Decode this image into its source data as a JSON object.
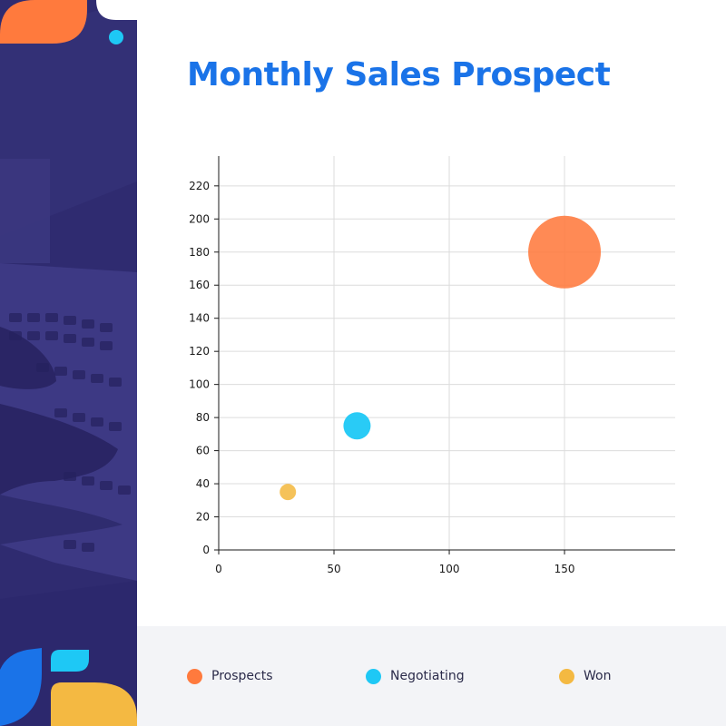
{
  "chart_data": {
    "type": "scatter",
    "title": "Monthly Sales Prospect",
    "xlabel": "",
    "ylabel": "",
    "xlim": [
      0,
      198
    ],
    "ylim": [
      0,
      238
    ],
    "x_ticks": [
      0,
      50,
      100,
      150
    ],
    "y_ticks": [
      0,
      20,
      40,
      60,
      80,
      100,
      120,
      140,
      160,
      180,
      200,
      220
    ],
    "grid": true,
    "legend_position": "bottom",
    "series": [
      {
        "name": "Prospects",
        "color": "#ff7a3d",
        "points": [
          {
            "x": 150,
            "y": 180,
            "size": 40
          }
        ]
      },
      {
        "name": "Negotiating",
        "color": "#1ec8f5",
        "points": [
          {
            "x": 60,
            "y": 75,
            "size": 15
          }
        ]
      },
      {
        "name": "Won",
        "color": "#f4b942",
        "points": [
          {
            "x": 30,
            "y": 35,
            "size": 9
          }
        ]
      }
    ]
  },
  "legend": {
    "items": [
      {
        "label": "Prospects",
        "color": "#ff7a3d"
      },
      {
        "label": "Negotiating",
        "color": "#1ec8f5"
      },
      {
        "label": "Won",
        "color": "#f4b942"
      }
    ]
  }
}
